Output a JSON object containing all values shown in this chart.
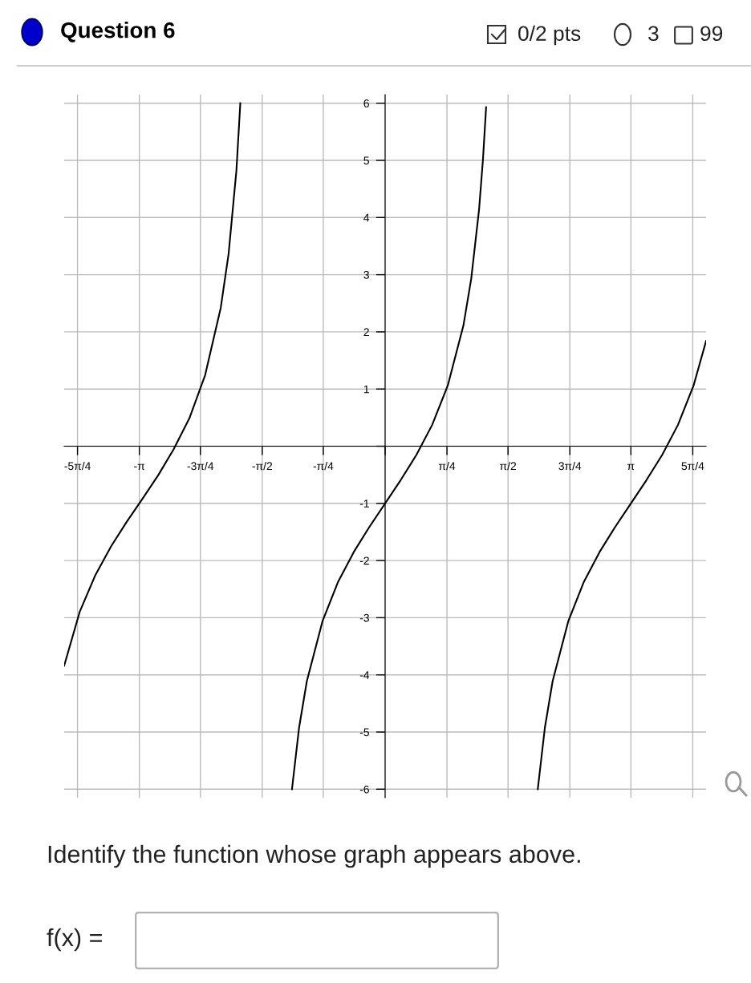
{
  "chart_data": {
    "type": "line",
    "title": "Question 6",
    "annotations": [
      "0/2 pts",
      "3",
      "99",
      "Identify the function whose graph appears above.",
      "f(x) ="
    ],
    "series": [
      {
        "color": "#000000",
        "x": [
          -4.1,
          -3.9,
          -3.7,
          -3.5,
          -3.3,
          -3.1,
          -2.9,
          -2.7,
          -2.5,
          -2.3,
          -2.1,
          -2.0,
          -1.9,
          -1.85,
          -1.57,
          -1.19,
          -1.1,
          -1.0,
          -0.8,
          -0.6,
          -0.4,
          -0.2,
          0,
          0.2,
          0.4,
          0.6,
          0.8,
          1.0,
          1.1,
          1.2,
          1.25,
          1.29,
          1.57,
          1.95,
          2.04,
          2.14,
          2.34,
          2.54,
          2.74,
          2.94,
          3.14,
          3.34,
          3.54,
          3.74,
          3.94,
          4.1
        ],
        "values": [
          -3.84,
          -2.89,
          -2.25,
          -1.75,
          -1.32,
          -0.92,
          -0.51,
          -0.05,
          0.49,
          1.24,
          2.42,
          3.36,
          4.82,
          6.0,
          null,
          -6.0,
          -4.93,
          -4.11,
          -3.06,
          -2.37,
          -1.85,
          -1.41,
          -1,
          -0.59,
          -0.15,
          0.37,
          1.06,
          2.11,
          2.93,
          4.14,
          5.02,
          5.93,
          null,
          -6.0,
          -4.93,
          -4.11,
          -3.06,
          -2.37,
          -1.85,
          -1.41,
          -1,
          -0.59,
          -0.15,
          0.37,
          1.06,
          1.84
        ]
      }
    ],
    "xlim": [
      -4.1,
      4.1
    ],
    "ylim": [
      -6.15,
      6.15
    ],
    "xticks": [
      {
        "value": -3.93,
        "label": "-5π/4"
      },
      {
        "value": -3.14,
        "label": "-π"
      },
      {
        "value": -2.36,
        "label": "-3π/4"
      },
      {
        "value": -1.57,
        "label": "-π/2"
      },
      {
        "value": -0.79,
        "label": "-π/4"
      },
      {
        "value": 0,
        "label": null
      },
      {
        "value": 0.79,
        "label": "π/4"
      },
      {
        "value": 1.57,
        "label": "π/2"
      },
      {
        "value": 2.36,
        "label": "3π/4"
      },
      {
        "value": 3.14,
        "label": "π"
      },
      {
        "value": 3.93,
        "label": "5π/4"
      }
    ],
    "yticks": [
      -6,
      -5,
      -4,
      -3,
      -2,
      -1,
      {
        "value": 0,
        "label": null
      },
      1,
      2,
      3,
      4,
      5,
      6
    ],
    "grid": true
  }
}
